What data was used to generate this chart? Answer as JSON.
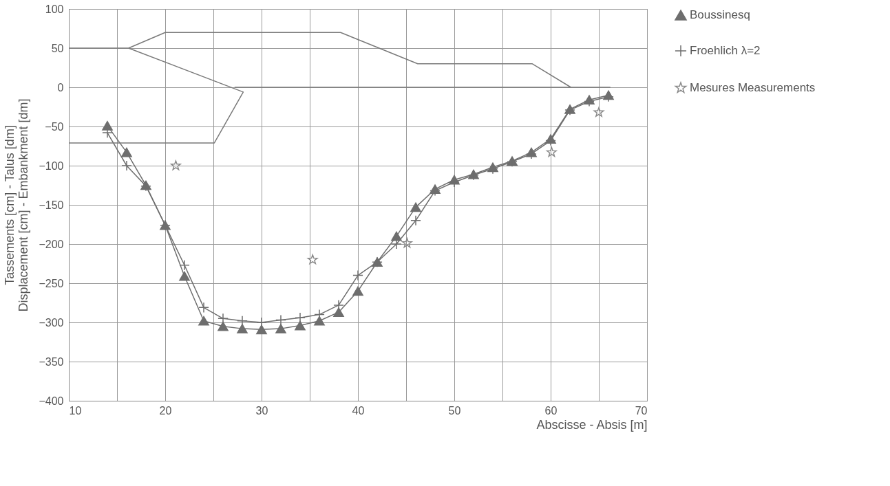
{
  "chart_data": {
    "type": "line",
    "xlabel": "Abscisse - Absis [m]",
    "ylabel": "Tassements [cm] - Talus [dm]\nDisplacement [cm] - Embankment [dm]",
    "x": [
      14,
      16,
      18,
      20,
      22,
      24,
      26,
      28,
      30,
      32,
      34,
      36,
      38,
      40,
      42,
      44,
      46,
      48,
      50,
      52,
      54,
      56,
      58,
      60,
      62,
      64,
      66
    ],
    "series": [
      {
        "name": "Boussinesq",
        "marker": "triangle",
        "color": "#6e6e6e",
        "values": [
          -49,
          -83,
          -125,
          -176,
          -241,
          -298,
          -305,
          -308,
          -309,
          -308,
          -304,
          -298,
          -287,
          -260,
          -223,
          -190,
          -153,
          -130,
          -118,
          -111,
          -102,
          -94,
          -83,
          -66,
          -28,
          -16,
          -10
        ]
      },
      {
        "name": "Froehlich λ=2",
        "marker": "cross",
        "color": "#6e6e6e",
        "values": [
          -58,
          -100,
          -126,
          -176,
          -227,
          -281,
          -295,
          -298,
          -300,
          -297,
          -294,
          -290,
          -278,
          -240,
          -223,
          -200,
          -170,
          -132,
          -121,
          -112,
          -104,
          -95,
          -85,
          -68,
          -29,
          -18,
          -12
        ]
      },
      {
        "name": "Mesures Measurements",
        "type": "scatter",
        "marker": "star",
        "color": "#8a8a8a",
        "x": [
          21.1,
          35.3,
          45.1,
          60.1,
          65.0
        ],
        "values": [
          -100,
          -220,
          -199,
          -83,
          -32
        ]
      },
      {
        "marker": "none",
        "color": "#7a7a7a",
        "x": [
          10,
          16.2,
          28.1,
          25.1,
          10,
          null,
          16.2,
          20,
          38.2,
          46.2,
          58.1,
          62.1,
          null,
          27.2,
          66.2
        ],
        "values": [
          50,
          50,
          -6,
          -71,
          -71,
          null,
          50,
          70,
          70,
          30,
          30,
          0,
          null,
          0,
          0
        ]
      }
    ],
    "xlim": [
      10,
      70
    ],
    "xticks": [
      10,
      {
        "value": 15,
        "label": null
      },
      20,
      {
        "value": 25,
        "label": null
      },
      30,
      {
        "value": 35,
        "label": null
      },
      40,
      {
        "value": 45,
        "label": null
      },
      50,
      {
        "value": 55,
        "label": null
      },
      60,
      {
        "value": 65,
        "label": null
      },
      70
    ],
    "ylim": [
      -400,
      100
    ],
    "yticks": [
      -400,
      -350,
      -300,
      -250,
      -200,
      -150,
      -100,
      -50,
      0,
      50,
      100
    ],
    "grid": true,
    "legend": "right",
    "line_style": "solid"
  }
}
